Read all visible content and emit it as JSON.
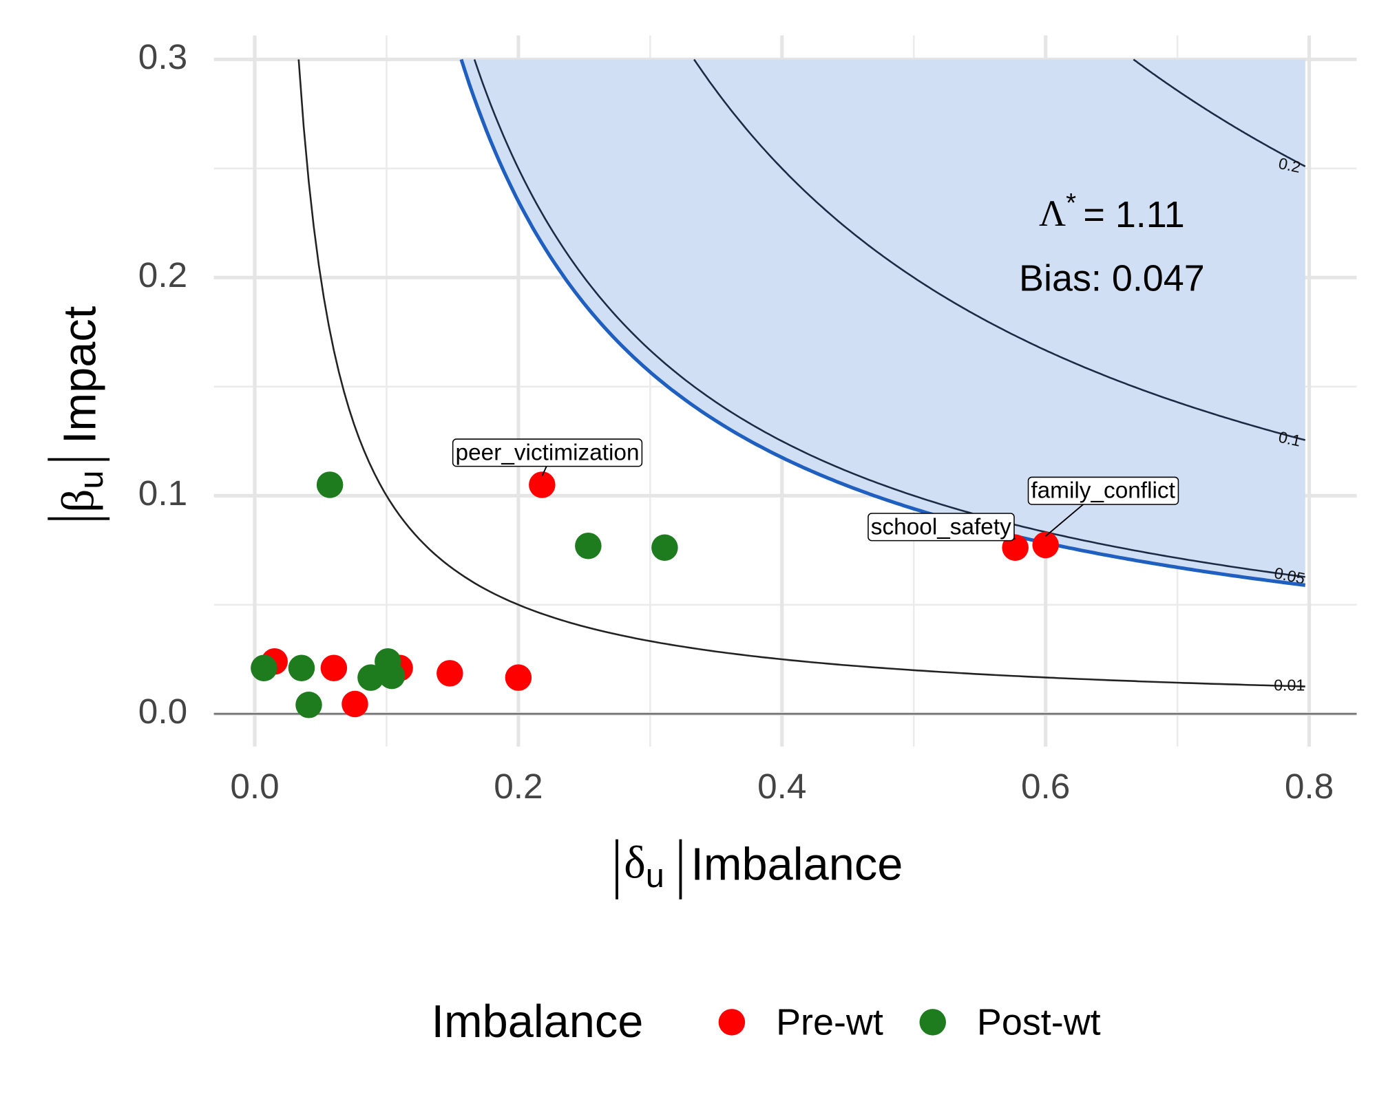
{
  "chart_data": {
    "type": "scatter",
    "xlabel": {
      "symbol": "δ",
      "sub": "u",
      "text": "Imbalance"
    },
    "ylabel": {
      "symbol": "β",
      "sub": "u",
      "text": "Impact"
    },
    "xlim": [
      -0.031,
      0.836
    ],
    "ylim": [
      -0.015,
      0.311
    ],
    "xticks": [
      {
        "value": 0,
        "label": "0.0"
      },
      0.2,
      0.4,
      0.6,
      0.8
    ],
    "yticks": [
      {
        "value": 0,
        "label": "0.0"
      },
      0.1,
      0.2,
      0.3
    ],
    "xminorticks": [
      0.1,
      0.3,
      0.5,
      0.7
    ],
    "yminorticks": [
      0.05,
      0.15,
      0.25
    ],
    "grid": true,
    "contour_levels": [
      0.01,
      0.05,
      0.1,
      0.2
    ],
    "threshold": {
      "value": 0.047,
      "label": "Bias: 0.047",
      "color": "#1f5fbf",
      "fill": "#d0dff4"
    },
    "annotation": {
      "symbol": "Λ",
      "sup": "*",
      "text": "= 1.11"
    },
    "legend": {
      "title": "Imbalance",
      "position": "bottom"
    },
    "series": [
      {
        "name": "Pre-wt",
        "color": "#ff0000",
        "x": [
          0.015,
          0.06,
          0.076,
          0.11,
          0.148,
          0.2,
          0.218,
          0.577,
          0.6
        ],
        "values": [
          0.024,
          0.021,
          0.0045,
          0.021,
          0.0186,
          0.0166,
          0.105,
          0.0762,
          0.0774
        ],
        "labels": [
          null,
          null,
          null,
          null,
          null,
          null,
          "peer_victimization",
          "school_safety",
          "family_conflict"
        ]
      },
      {
        "name": "Post-wt",
        "color": "#1e7b1e",
        "x": [
          0.007,
          0.0355,
          0.041,
          0.057,
          0.088,
          0.104,
          0.101,
          0.253,
          0.311
        ],
        "values": [
          0.021,
          0.021,
          0.0041,
          0.105,
          0.0166,
          0.0174,
          0.024,
          0.077,
          0.0762
        ]
      }
    ]
  }
}
